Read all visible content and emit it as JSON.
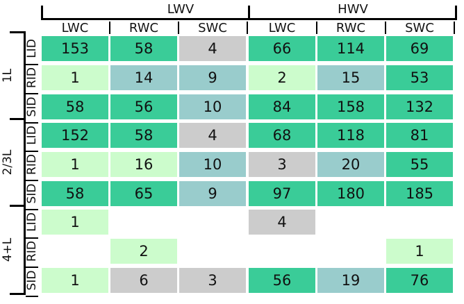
{
  "colors": {
    "high": "#3acc98",
    "low": "#ccfccc",
    "mid": "#99cccc",
    "gray": "#cccccc"
  },
  "column_groups": [
    "LWV",
    "HWV"
  ],
  "column_headers": [
    "LWC",
    "RWC",
    "SWC",
    "LWC",
    "RWC",
    "SWC"
  ],
  "row_groups": [
    "1L",
    "2/3L",
    "4+L"
  ],
  "row_labels": [
    "LID",
    "RID",
    "SID"
  ],
  "rows": [
    {
      "group": "1L",
      "label": "LID",
      "cells": [
        {
          "v": "153",
          "c": "high"
        },
        {
          "v": "58",
          "c": "high"
        },
        {
          "v": "4",
          "c": "gray"
        },
        {
          "v": "66",
          "c": "high"
        },
        {
          "v": "114",
          "c": "high"
        },
        {
          "v": "69",
          "c": "high"
        }
      ]
    },
    {
      "group": "1L",
      "label": "RID",
      "cells": [
        {
          "v": "1",
          "c": "low"
        },
        {
          "v": "14",
          "c": "mid"
        },
        {
          "v": "9",
          "c": "mid"
        },
        {
          "v": "2",
          "c": "low"
        },
        {
          "v": "15",
          "c": "mid"
        },
        {
          "v": "53",
          "c": "high"
        }
      ]
    },
    {
      "group": "1L",
      "label": "SID",
      "cells": [
        {
          "v": "58",
          "c": "high"
        },
        {
          "v": "56",
          "c": "high"
        },
        {
          "v": "10",
          "c": "mid"
        },
        {
          "v": "84",
          "c": "high"
        },
        {
          "v": "158",
          "c": "high"
        },
        {
          "v": "132",
          "c": "high"
        }
      ]
    },
    {
      "group": "2/3L",
      "label": "LID",
      "cells": [
        {
          "v": "152",
          "c": "high"
        },
        {
          "v": "58",
          "c": "high"
        },
        {
          "v": "4",
          "c": "gray"
        },
        {
          "v": "68",
          "c": "high"
        },
        {
          "v": "118",
          "c": "high"
        },
        {
          "v": "81",
          "c": "high"
        }
      ]
    },
    {
      "group": "2/3L",
      "label": "RID",
      "cells": [
        {
          "v": "1",
          "c": "low"
        },
        {
          "v": "16",
          "c": "low"
        },
        {
          "v": "10",
          "c": "mid"
        },
        {
          "v": "3",
          "c": "gray"
        },
        {
          "v": "20",
          "c": "mid"
        },
        {
          "v": "55",
          "c": "high"
        }
      ]
    },
    {
      "group": "2/3L",
      "label": "SID",
      "cells": [
        {
          "v": "58",
          "c": "high"
        },
        {
          "v": "65",
          "c": "high"
        },
        {
          "v": "9",
          "c": "mid"
        },
        {
          "v": "97",
          "c": "high"
        },
        {
          "v": "180",
          "c": "high"
        },
        {
          "v": "185",
          "c": "high"
        }
      ]
    },
    {
      "group": "4+L",
      "label": "LID",
      "cells": [
        {
          "v": "1",
          "c": "low"
        },
        null,
        null,
        {
          "v": "4",
          "c": "gray"
        },
        null,
        null
      ]
    },
    {
      "group": "4+L",
      "label": "RID",
      "cells": [
        null,
        {
          "v": "2",
          "c": "low"
        },
        null,
        null,
        null,
        {
          "v": "1",
          "c": "low"
        }
      ]
    },
    {
      "group": "4+L",
      "label": "SID",
      "cells": [
        {
          "v": "1",
          "c": "low"
        },
        {
          "v": "6",
          "c": "gray"
        },
        {
          "v": "3",
          "c": "gray"
        },
        {
          "v": "56",
          "c": "high"
        },
        {
          "v": "19",
          "c": "mid"
        },
        {
          "v": "76",
          "c": "high"
        }
      ]
    }
  ]
}
